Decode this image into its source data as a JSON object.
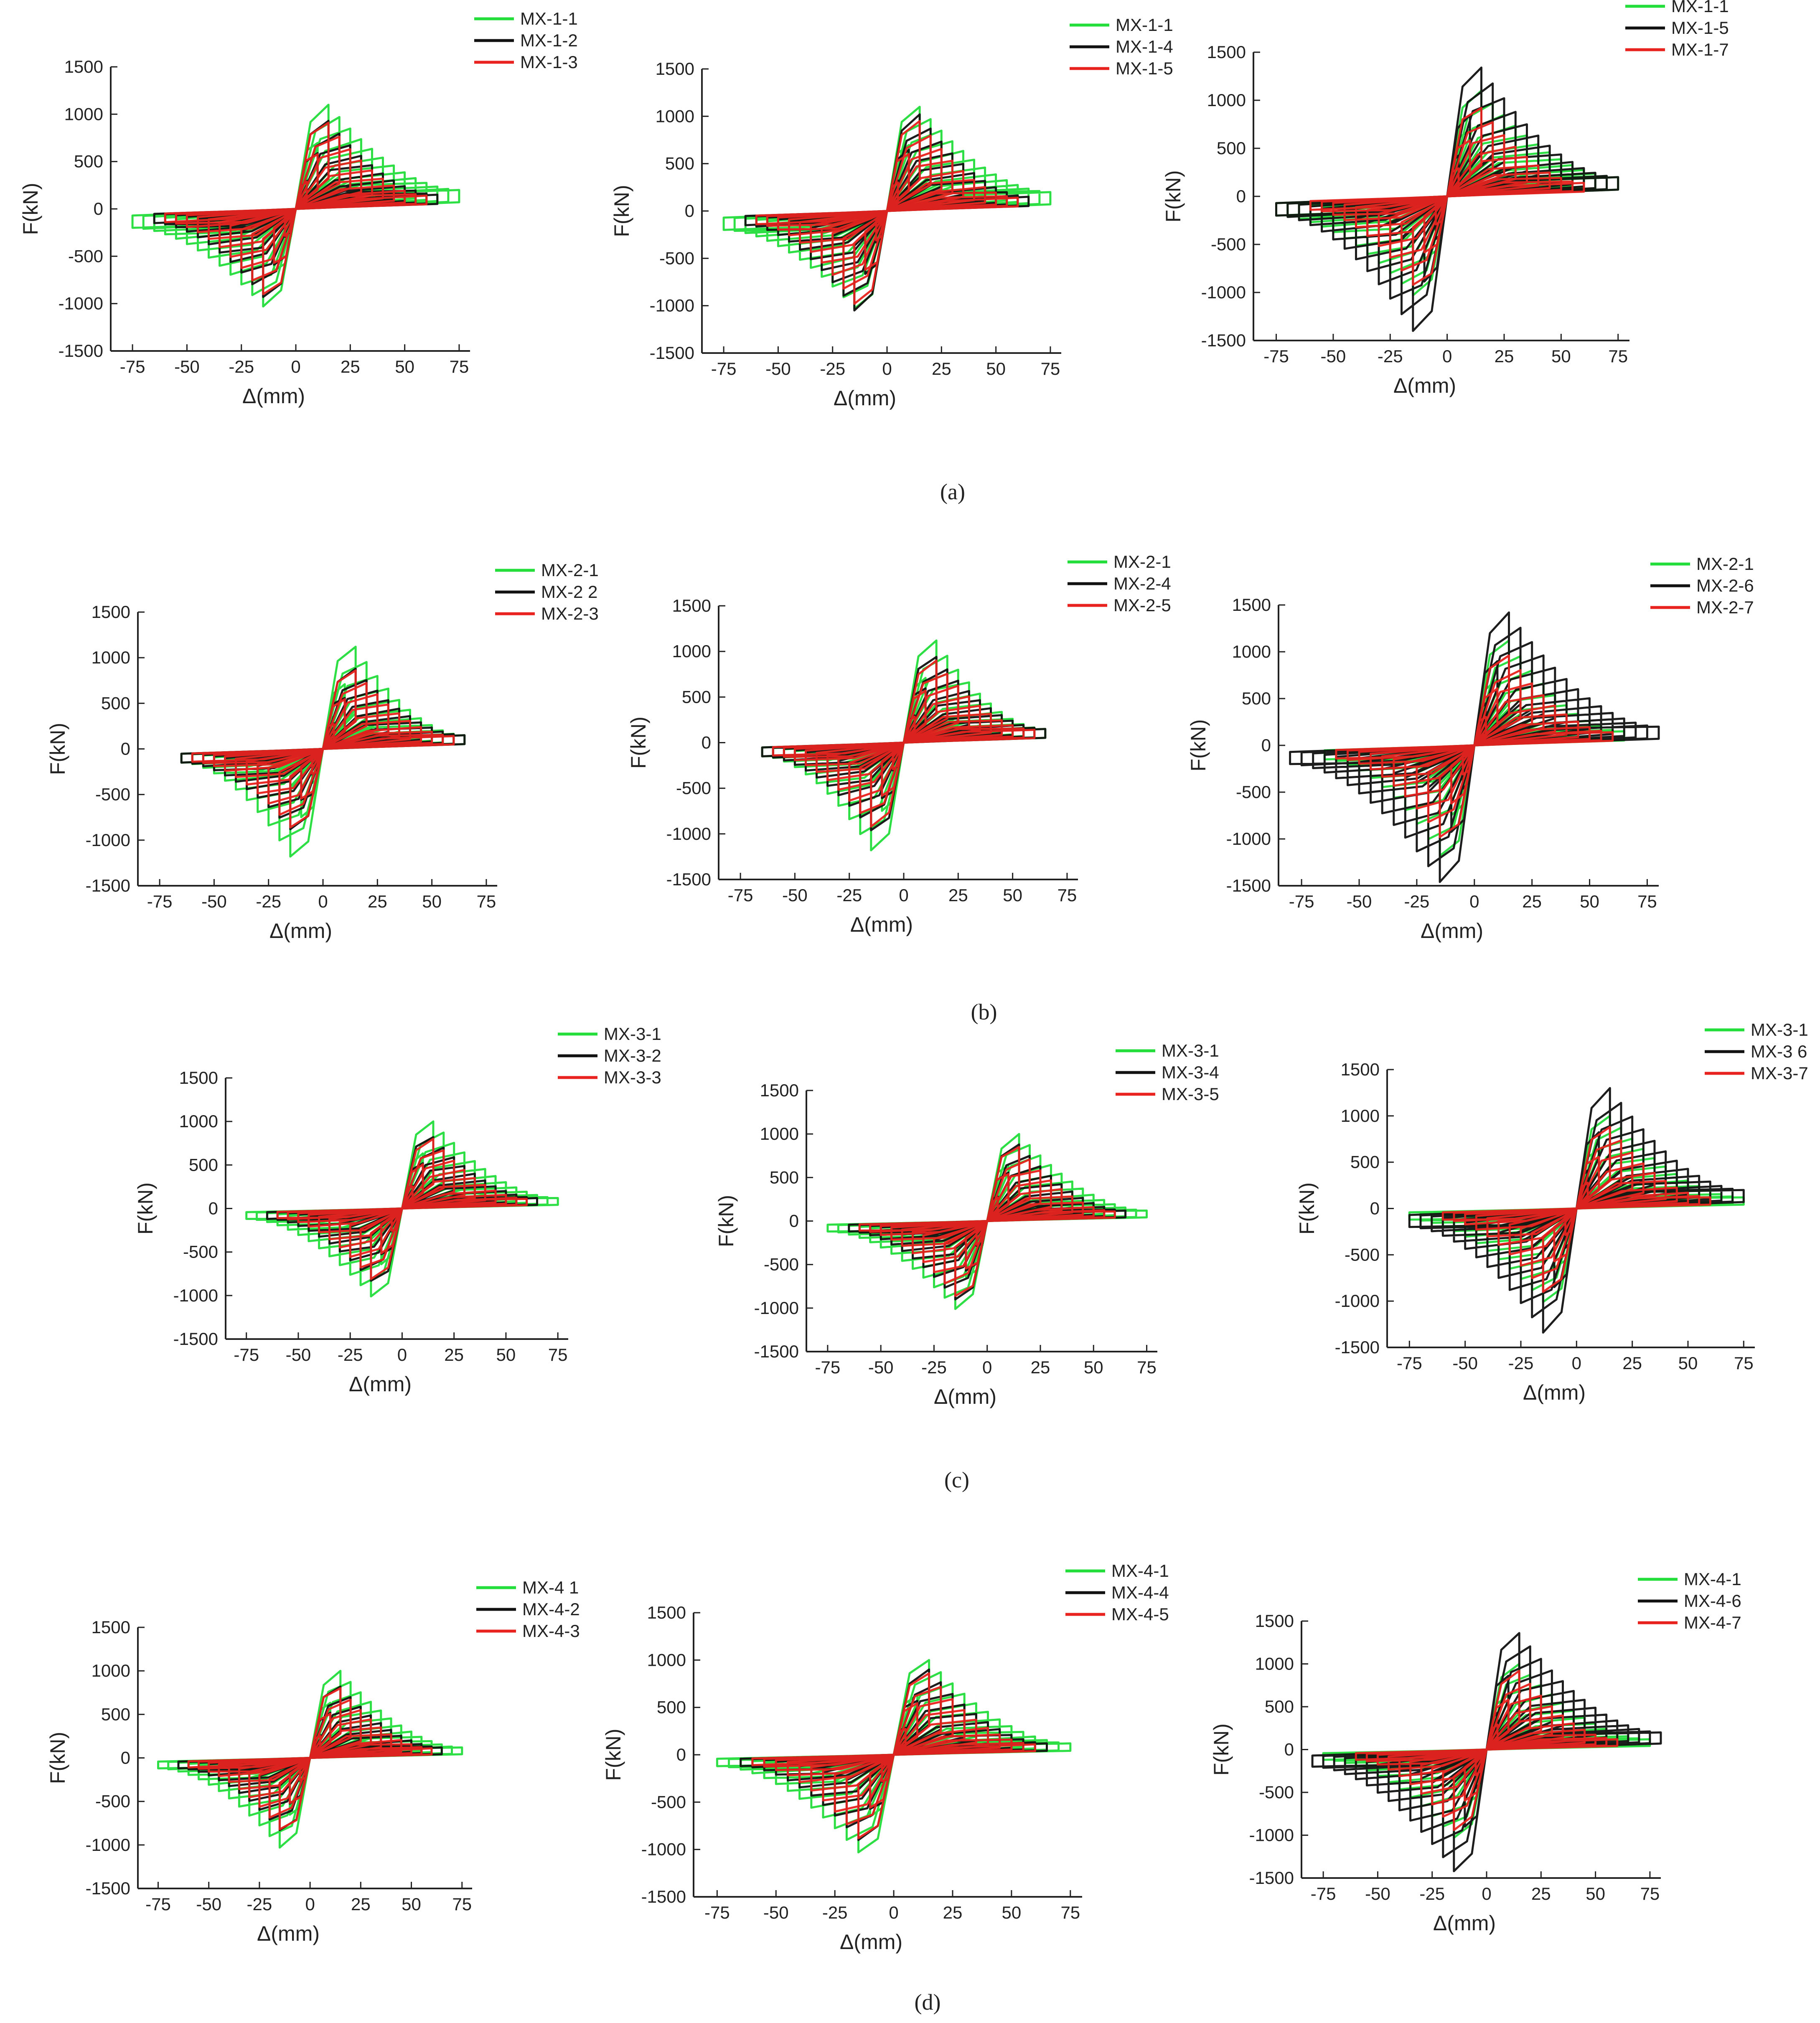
{
  "figure": {
    "captions": [
      "(a)",
      "(b)",
      "(c)",
      "(d)"
    ],
    "legend_colors": {
      "green": "#22dd3a",
      "black": "#111111",
      "red": "#e8231f"
    }
  },
  "chart_data": [
    {
      "id": "a1",
      "row": "a",
      "type": "line",
      "title": "",
      "xlabel": "Δ(mm)",
      "ylabel": "F(kN)",
      "xlim": [
        -85,
        80
      ],
      "ylim": [
        -1500,
        1500
      ],
      "xticks": [
        -75,
        -50,
        -25,
        0,
        25,
        50,
        75
      ],
      "yticks": [
        -1500,
        -1000,
        -500,
        0,
        500,
        1000,
        1500
      ],
      "series": [
        {
          "name": "MX-1-1",
          "color": "#22dd3a",
          "peak_pos": 1100,
          "peak_neg": -1030,
          "max_disp": 75,
          "min_disp": -75,
          "residual": 200
        },
        {
          "name": "MX-1-2",
          "color": "#111111",
          "peak_pos": 930,
          "peak_neg": -930,
          "max_disp": 65,
          "min_disp": -65,
          "residual": 150
        },
        {
          "name": "MX-1-3",
          "color": "#e8231f",
          "peak_pos": 910,
          "peak_neg": -900,
          "max_disp": 60,
          "min_disp": -60,
          "residual": 140
        }
      ]
    },
    {
      "id": "a2",
      "row": "a",
      "type": "line",
      "title": "",
      "xlabel": "Δ(mm)",
      "ylabel": "F(kN)",
      "xlim": [
        -85,
        80
      ],
      "ylim": [
        -1500,
        1500
      ],
      "xticks": [
        -75,
        -50,
        -25,
        0,
        25,
        50,
        75
      ],
      "yticks": [
        -1500,
        -1000,
        -500,
        0,
        500,
        1000,
        1500
      ],
      "series": [
        {
          "name": "MX-1-1",
          "color": "#22dd3a",
          "peak_pos": 1100,
          "peak_neg": -1030,
          "max_disp": 75,
          "min_disp": -75,
          "residual": 200
        },
        {
          "name": "MX-1-4",
          "color": "#111111",
          "peak_pos": 1020,
          "peak_neg": -1050,
          "max_disp": 65,
          "min_disp": -65,
          "residual": 150
        },
        {
          "name": "MX-1-5",
          "color": "#e8231f",
          "peak_pos": 950,
          "peak_neg": -980,
          "max_disp": 60,
          "min_disp": -60,
          "residual": 140
        }
      ]
    },
    {
      "id": "a3",
      "row": "a",
      "type": "line",
      "title": "",
      "xlabel": "Δ(mm)",
      "ylabel": "F(kN)",
      "xlim": [
        -85,
        80
      ],
      "ylim": [
        -1500,
        1500
      ],
      "xticks": [
        -75,
        -50,
        -25,
        0,
        25,
        50,
        75
      ],
      "yticks": [
        -1500,
        -1000,
        -500,
        0,
        500,
        1000,
        1500
      ],
      "series": [
        {
          "name": "MX-1-1",
          "color": "#22dd3a",
          "peak_pos": 1100,
          "peak_neg": -1030,
          "max_disp": 75,
          "min_disp": -75,
          "residual": 200
        },
        {
          "name": "MX-1-5",
          "color": "#111111",
          "peak_pos": 1340,
          "peak_neg": -1400,
          "max_disp": 75,
          "min_disp": -75,
          "residual": 200
        },
        {
          "name": "MX-1-7",
          "color": "#e8231f",
          "peak_pos": 920,
          "peak_neg": -920,
          "max_disp": 60,
          "min_disp": -60,
          "residual": 140
        }
      ]
    },
    {
      "id": "b1",
      "row": "b",
      "type": "line",
      "title": "",
      "xlabel": "Δ(mm)",
      "ylabel": "F(kN)",
      "xlim": [
        -85,
        80
      ],
      "ylim": [
        -1500,
        1500
      ],
      "xticks": [
        -75,
        -50,
        -25,
        0,
        25,
        50,
        75
      ],
      "yticks": [
        -1500,
        -1000,
        -500,
        0,
        500,
        1000,
        1500
      ],
      "series": [
        {
          "name": "MX-2-1",
          "color": "#22dd3a",
          "peak_pos": 1120,
          "peak_neg": -1180,
          "max_disp": 65,
          "min_disp": -65,
          "residual": 150
        },
        {
          "name": "MX-2 2",
          "color": "#111111",
          "peak_pos": 880,
          "peak_neg": -880,
          "max_disp": 65,
          "min_disp": -65,
          "residual": 150
        },
        {
          "name": "MX-2-3",
          "color": "#e8231f",
          "peak_pos": 860,
          "peak_neg": -860,
          "max_disp": 60,
          "min_disp": -60,
          "residual": 140
        }
      ]
    },
    {
      "id": "b2",
      "row": "b",
      "type": "line",
      "title": "",
      "xlabel": "Δ(mm)",
      "ylabel": "F(kN)",
      "xlim": [
        -85,
        80
      ],
      "ylim": [
        -1500,
        1500
      ],
      "xticks": [
        -75,
        -50,
        -25,
        0,
        25,
        50,
        75
      ],
      "yticks": [
        -1500,
        -1000,
        -500,
        0,
        500,
        1000,
        1500
      ],
      "series": [
        {
          "name": "MX-2-1",
          "color": "#22dd3a",
          "peak_pos": 1120,
          "peak_neg": -1180,
          "max_disp": 65,
          "min_disp": -65,
          "residual": 150
        },
        {
          "name": "MX-2-4",
          "color": "#111111",
          "peak_pos": 940,
          "peak_neg": -960,
          "max_disp": 65,
          "min_disp": -65,
          "residual": 150
        },
        {
          "name": "MX-2-5",
          "color": "#e8231f",
          "peak_pos": 900,
          "peak_neg": -920,
          "max_disp": 60,
          "min_disp": -60,
          "residual": 140
        }
      ]
    },
    {
      "id": "b3",
      "row": "b",
      "type": "line",
      "title": "",
      "xlabel": "Δ(mm)",
      "ylabel": "F(kN)",
      "xlim": [
        -85,
        80
      ],
      "ylim": [
        -1500,
        1500
      ],
      "xticks": [
        -75,
        -50,
        -25,
        0,
        25,
        50,
        75
      ],
      "yticks": [
        -1500,
        -1000,
        -500,
        0,
        500,
        1000,
        1500
      ],
      "series": [
        {
          "name": "MX-2-1",
          "color": "#22dd3a",
          "peak_pos": 1120,
          "peak_neg": -1180,
          "max_disp": 65,
          "min_disp": -65,
          "residual": 150
        },
        {
          "name": "MX-2-6",
          "color": "#111111",
          "peak_pos": 1420,
          "peak_neg": -1460,
          "max_disp": 80,
          "min_disp": -80,
          "residual": 200
        },
        {
          "name": "MX-2-7",
          "color": "#e8231f",
          "peak_pos": 960,
          "peak_neg": -980,
          "max_disp": 60,
          "min_disp": -60,
          "residual": 140
        }
      ]
    },
    {
      "id": "c1",
      "row": "c",
      "type": "line",
      "title": "",
      "xlabel": "Δ(mm)",
      "ylabel": "F(kN)",
      "xlim": [
        -85,
        80
      ],
      "ylim": [
        -1500,
        1500
      ],
      "xticks": [
        -75,
        -50,
        -25,
        0,
        25,
        50,
        75
      ],
      "yticks": [
        -1500,
        -1000,
        -500,
        0,
        500,
        1000,
        1500
      ],
      "series": [
        {
          "name": "MX-3-1",
          "color": "#22dd3a",
          "peak_pos": 1000,
          "peak_neg": -1010,
          "max_disp": 75,
          "min_disp": -75,
          "residual": 120
        },
        {
          "name": "MX-3-2",
          "color": "#111111",
          "peak_pos": 820,
          "peak_neg": -830,
          "max_disp": 65,
          "min_disp": -65,
          "residual": 120
        },
        {
          "name": "MX-3-3",
          "color": "#e8231f",
          "peak_pos": 800,
          "peak_neg": -810,
          "max_disp": 60,
          "min_disp": -60,
          "residual": 110
        }
      ]
    },
    {
      "id": "c2",
      "row": "c",
      "type": "line",
      "title": "",
      "xlabel": "Δ(mm)",
      "ylabel": "F(kN)",
      "xlim": [
        -85,
        80
      ],
      "ylim": [
        -1500,
        1500
      ],
      "xticks": [
        -75,
        -50,
        -25,
        0,
        25,
        50,
        75
      ],
      "yticks": [
        -1500,
        -1000,
        -500,
        0,
        500,
        1000,
        1500
      ],
      "series": [
        {
          "name": "MX-3-1",
          "color": "#22dd3a",
          "peak_pos": 1000,
          "peak_neg": -1010,
          "max_disp": 75,
          "min_disp": -75,
          "residual": 120
        },
        {
          "name": "MX-3-4",
          "color": "#111111",
          "peak_pos": 880,
          "peak_neg": -900,
          "max_disp": 65,
          "min_disp": -65,
          "residual": 120
        },
        {
          "name": "MX-3-5",
          "color": "#e8231f",
          "peak_pos": 850,
          "peak_neg": -860,
          "max_disp": 60,
          "min_disp": -60,
          "residual": 110
        }
      ]
    },
    {
      "id": "c3",
      "row": "c",
      "type": "line",
      "title": "",
      "xlabel": "Δ(mm)",
      "ylabel": "F(kN)",
      "xlim": [
        -85,
        80
      ],
      "ylim": [
        -1500,
        1500
      ],
      "xticks": [
        -75,
        -50,
        -25,
        0,
        25,
        50,
        75
      ],
      "yticks": [
        -1500,
        -1000,
        -500,
        0,
        500,
        1000,
        1500
      ],
      "series": [
        {
          "name": "MX-3-1",
          "color": "#22dd3a",
          "peak_pos": 1000,
          "peak_neg": -1010,
          "max_disp": 75,
          "min_disp": -75,
          "residual": 120
        },
        {
          "name": "MX-3 6",
          "color": "#111111",
          "peak_pos": 1300,
          "peak_neg": -1340,
          "max_disp": 75,
          "min_disp": -75,
          "residual": 200
        },
        {
          "name": "MX-3-7",
          "color": "#e8231f",
          "peak_pos": 880,
          "peak_neg": -900,
          "max_disp": 60,
          "min_disp": -60,
          "residual": 120
        }
      ]
    },
    {
      "id": "d1",
      "row": "d",
      "type": "line",
      "title": "",
      "xlabel": "Δ(mm)",
      "ylabel": "F(kN)",
      "xlim": [
        -85,
        80
      ],
      "ylim": [
        -1500,
        1500
      ],
      "xticks": [
        -75,
        -50,
        -25,
        0,
        25,
        50,
        75
      ],
      "yticks": [
        -1500,
        -1000,
        -500,
        0,
        500,
        1000,
        1500
      ],
      "series": [
        {
          "name": "MX-4 1",
          "color": "#22dd3a",
          "peak_pos": 1000,
          "peak_neg": -1030,
          "max_disp": 75,
          "min_disp": -75,
          "residual": 120
        },
        {
          "name": "MX-4-2",
          "color": "#111111",
          "peak_pos": 820,
          "peak_neg": -830,
          "max_disp": 65,
          "min_disp": -65,
          "residual": 120
        },
        {
          "name": "MX-4-3",
          "color": "#e8231f",
          "peak_pos": 800,
          "peak_neg": -820,
          "max_disp": 60,
          "min_disp": -60,
          "residual": 110
        }
      ]
    },
    {
      "id": "d2",
      "row": "d",
      "type": "line",
      "title": "",
      "xlabel": "Δ(mm)",
      "ylabel": "F(kN)",
      "xlim": [
        -85,
        80
      ],
      "ylim": [
        -1500,
        1500
      ],
      "xticks": [
        -75,
        -50,
        -25,
        0,
        25,
        50,
        75
      ],
      "yticks": [
        -1500,
        -1000,
        -500,
        0,
        500,
        1000,
        1500
      ],
      "series": [
        {
          "name": "MX-4-1",
          "color": "#22dd3a",
          "peak_pos": 1000,
          "peak_neg": -1030,
          "max_disp": 75,
          "min_disp": -75,
          "residual": 120
        },
        {
          "name": "MX-4-4",
          "color": "#111111",
          "peak_pos": 900,
          "peak_neg": -900,
          "max_disp": 65,
          "min_disp": -65,
          "residual": 120
        },
        {
          "name": "MX-4-5",
          "color": "#e8231f",
          "peak_pos": 860,
          "peak_neg": -880,
          "max_disp": 60,
          "min_disp": -60,
          "residual": 110
        }
      ]
    },
    {
      "id": "d3",
      "row": "d",
      "type": "line",
      "title": "",
      "xlabel": "Δ(mm)",
      "ylabel": "F(kN)",
      "xlim": [
        -85,
        80
      ],
      "ylim": [
        -1500,
        1500
      ],
      "xticks": [
        -75,
        -50,
        -25,
        0,
        25,
        50,
        75
      ],
      "yticks": [
        -1500,
        -1000,
        -500,
        0,
        500,
        1000,
        1500
      ],
      "series": [
        {
          "name": "MX-4-1",
          "color": "#22dd3a",
          "peak_pos": 1000,
          "peak_neg": -1030,
          "max_disp": 75,
          "min_disp": -75,
          "residual": 120
        },
        {
          "name": "MX-4-6",
          "color": "#111111",
          "peak_pos": 1360,
          "peak_neg": -1420,
          "max_disp": 80,
          "min_disp": -80,
          "residual": 200
        },
        {
          "name": "MX-4-7",
          "color": "#e8231f",
          "peak_pos": 920,
          "peak_neg": -940,
          "max_disp": 60,
          "min_disp": -60,
          "residual": 120
        }
      ]
    }
  ]
}
